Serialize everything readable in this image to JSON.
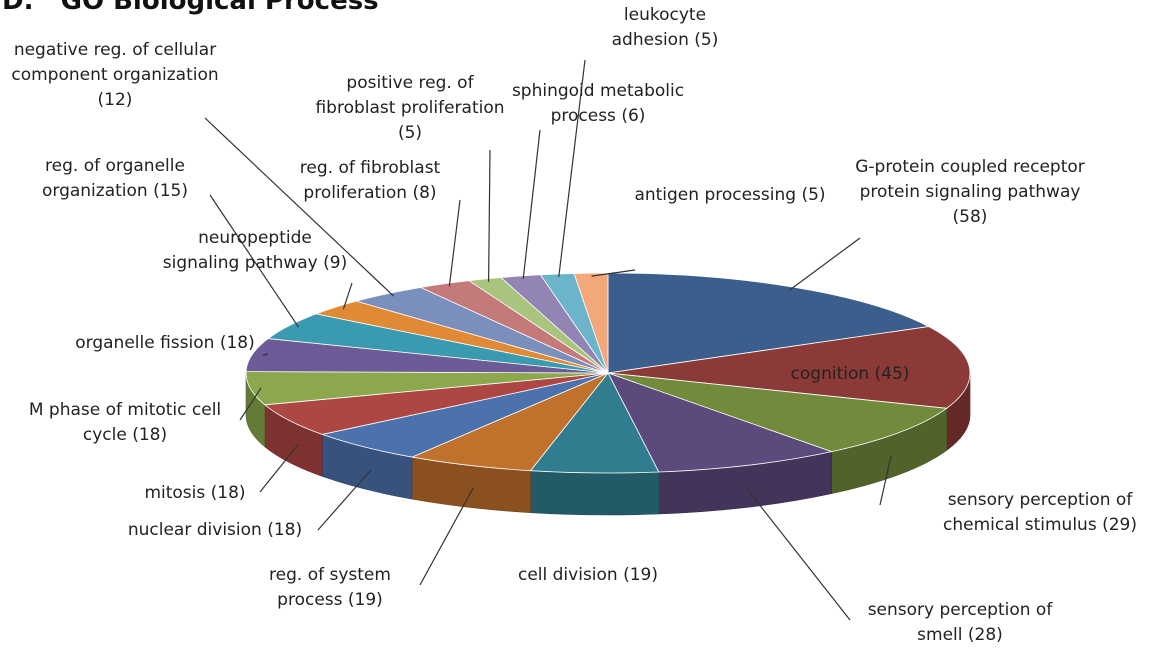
{
  "chart_data": {
    "type": "pie",
    "style": "3d",
    "title": "D.   GO Biological Process",
    "categories": [
      "G-protein coupled receptor protein signaling pathway",
      "cognition",
      "sensory perception of chemical stimulus",
      "sensory perception of smell",
      "cell division",
      "reg. of system process",
      "nuclear division",
      "mitosis",
      "M phase of mitotic cell cycle",
      "organelle fission",
      "reg. of organelle organization",
      "neuropeptide signaling pathway",
      "negative reg. of cellular component organization",
      "reg. of fibroblast proliferation",
      "positive reg. of fibroblast proliferation",
      "sphingoid metabolic process",
      "leukocyte adhesion",
      "antigen processing"
    ],
    "values": [
      58,
      45,
      29,
      28,
      19,
      19,
      18,
      18,
      18,
      18,
      15,
      9,
      12,
      8,
      5,
      6,
      5,
      5
    ],
    "value_labels": [
      "(58)",
      "(45)",
      "(29)",
      "(28)",
      "(19)",
      "(19)",
      "(18)",
      "(18)",
      "(18)",
      "(18)",
      "(15)",
      "(9)",
      "(12)",
      "(8)",
      "(5)",
      "(6)",
      "(5)",
      "(5)"
    ],
    "colors": [
      "#3b5e8c",
      "#8c3a38",
      "#718a3c",
      "#5b4a7b",
      "#2f7d8e",
      "#c0712b",
      "#4b72ad",
      "#ae4644",
      "#8ba94c",
      "#6c5b97",
      "#3a9ab0",
      "#e08a35",
      "#7b8fbd",
      "#c57a7a",
      "#a9c47e",
      "#9285b3",
      "#6cb3cc",
      "#f2a878"
    ]
  }
}
